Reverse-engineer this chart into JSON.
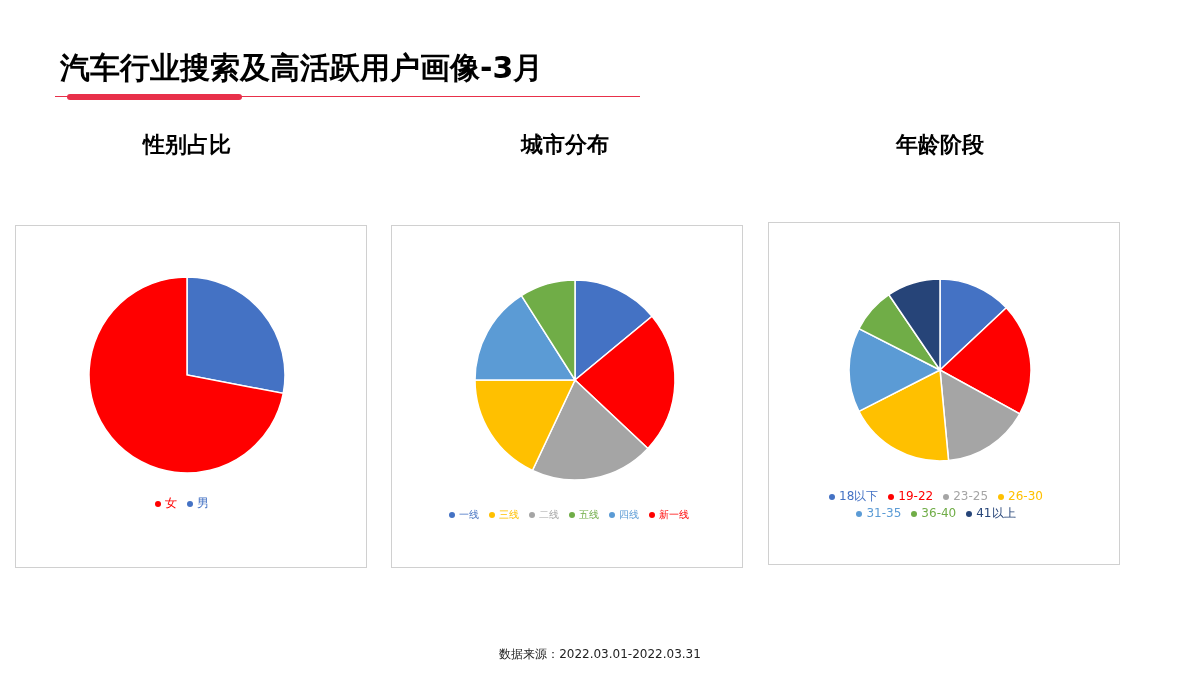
{
  "chart_data": [
    {
      "type": "other",
      "title": "汽车行业搜索及高活跃用户画像-3月",
      "annotations": [
        "数据来源：2022.03.01-2022.03.31"
      ]
    },
    {
      "type": "pie",
      "title": "性别占比",
      "categories": [
        "男",
        "女"
      ],
      "values": [
        28,
        72
      ],
      "colors": [
        "#4472c4",
        "#ff0000"
      ],
      "legend": "bottom"
    },
    {
      "type": "pie",
      "title": "城市分布",
      "categories": [
        "一线",
        "新一线",
        "二线",
        "三线",
        "四线",
        "五线"
      ],
      "values": [
        14,
        23,
        20,
        18,
        16,
        9
      ],
      "colors": [
        "#4472c4",
        "#ff0000",
        "#a5a5a5",
        "#ffc000",
        "#5b9bd5",
        "#70ad47"
      ],
      "legend": "bottom"
    },
    {
      "type": "pie",
      "title": "年龄阶段",
      "categories": [
        "18以下",
        "19-22",
        "23-25",
        "26-30",
        "31-35",
        "36-40",
        "41以上"
      ],
      "values": [
        13,
        20,
        15.5,
        19,
        15,
        8,
        9.5
      ],
      "colors": [
        "#4472c4",
        "#ff0000",
        "#a5a5a5",
        "#ffc000",
        "#5b9bd5",
        "#70ad47",
        "#264478"
      ],
      "legend": "bottom"
    }
  ]
}
